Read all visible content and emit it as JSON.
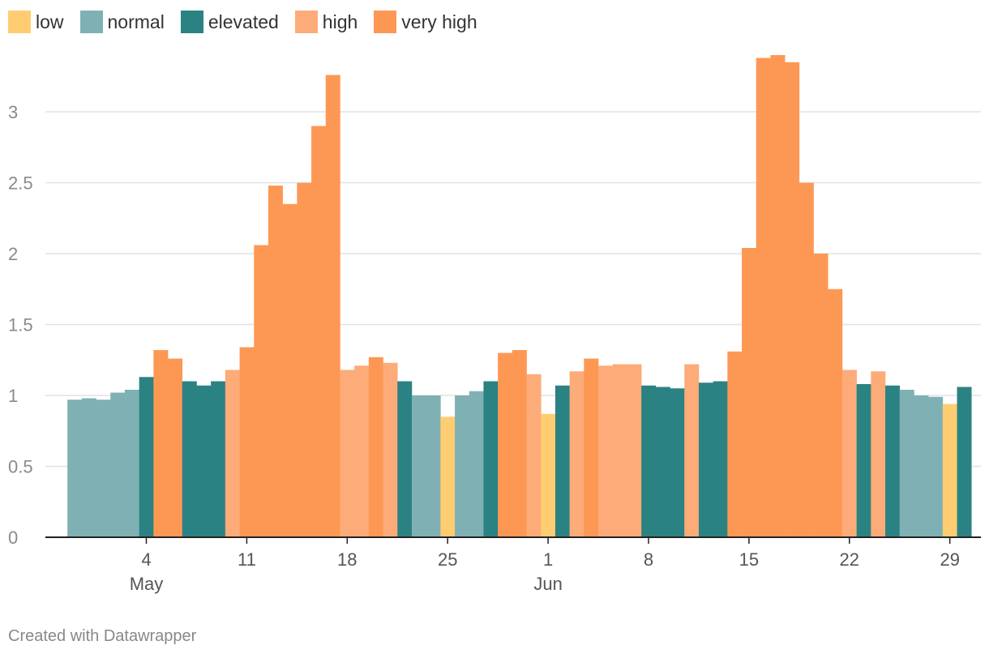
{
  "chart_data": {
    "type": "bar",
    "legend": [
      {
        "key": "low",
        "label": "low",
        "color": "#ffcd71"
      },
      {
        "key": "normal",
        "label": "normal",
        "color": "#7fb1b4"
      },
      {
        "key": "elevated",
        "label": "elevated",
        "color": "#2b8283"
      },
      {
        "key": "high",
        "label": "high",
        "color": "#fdab78"
      },
      {
        "key": "very_high",
        "label": "very high",
        "color": "#fd9854"
      }
    ],
    "ylim": [
      0,
      3.4
    ],
    "yticks": [
      {
        "value": 0,
        "label": "0"
      },
      {
        "value": 0.5,
        "label": "0.5"
      },
      {
        "value": 1,
        "label": "1"
      },
      {
        "value": 1.5,
        "label": "1.5"
      },
      {
        "value": 2,
        "label": "2"
      },
      {
        "value": 2.5,
        "label": "2.5"
      },
      {
        "value": 3,
        "label": "3"
      }
    ],
    "x_start": "2020-04-28",
    "x_end": "2020-06-30",
    "xticks": [
      {
        "date": "2020-05-04",
        "label": "4",
        "sublabel": "May"
      },
      {
        "date": "2020-05-11",
        "label": "11",
        "sublabel": ""
      },
      {
        "date": "2020-05-18",
        "label": "18",
        "sublabel": ""
      },
      {
        "date": "2020-05-25",
        "label": "25",
        "sublabel": ""
      },
      {
        "date": "2020-06-01",
        "label": "1",
        "sublabel": "Jun"
      },
      {
        "date": "2020-06-08",
        "label": "8",
        "sublabel": ""
      },
      {
        "date": "2020-06-15",
        "label": "15",
        "sublabel": ""
      },
      {
        "date": "2020-06-22",
        "label": "22",
        "sublabel": ""
      },
      {
        "date": "2020-06-29",
        "label": "29",
        "sublabel": ""
      }
    ],
    "bars": [
      {
        "date": "2020-04-29",
        "value": 0.97,
        "category": "normal"
      },
      {
        "date": "2020-04-30",
        "value": 0.98,
        "category": "normal"
      },
      {
        "date": "2020-05-01",
        "value": 0.97,
        "category": "normal"
      },
      {
        "date": "2020-05-02",
        "value": 1.02,
        "category": "normal"
      },
      {
        "date": "2020-05-03",
        "value": 1.04,
        "category": "normal"
      },
      {
        "date": "2020-05-04",
        "value": 1.13,
        "category": "elevated"
      },
      {
        "date": "2020-05-05",
        "value": 1.32,
        "category": "very_high"
      },
      {
        "date": "2020-05-06",
        "value": 1.26,
        "category": "very_high"
      },
      {
        "date": "2020-05-07",
        "value": 1.1,
        "category": "elevated"
      },
      {
        "date": "2020-05-08",
        "value": 1.07,
        "category": "elevated"
      },
      {
        "date": "2020-05-09",
        "value": 1.1,
        "category": "elevated"
      },
      {
        "date": "2020-05-10",
        "value": 1.18,
        "category": "high"
      },
      {
        "date": "2020-05-11",
        "value": 1.34,
        "category": "very_high"
      },
      {
        "date": "2020-05-12",
        "value": 2.06,
        "category": "very_high"
      },
      {
        "date": "2020-05-13",
        "value": 2.48,
        "category": "very_high"
      },
      {
        "date": "2020-05-14",
        "value": 2.35,
        "category": "very_high"
      },
      {
        "date": "2020-05-15",
        "value": 2.5,
        "category": "very_high"
      },
      {
        "date": "2020-05-16",
        "value": 2.9,
        "category": "very_high"
      },
      {
        "date": "2020-05-17",
        "value": 3.26,
        "category": "very_high"
      },
      {
        "date": "2020-05-18",
        "value": 1.18,
        "category": "high"
      },
      {
        "date": "2020-05-19",
        "value": 1.21,
        "category": "high"
      },
      {
        "date": "2020-05-20",
        "value": 1.27,
        "category": "very_high"
      },
      {
        "date": "2020-05-21",
        "value": 1.23,
        "category": "high"
      },
      {
        "date": "2020-05-22",
        "value": 1.1,
        "category": "elevated"
      },
      {
        "date": "2020-05-23",
        "value": 1.0,
        "category": "normal"
      },
      {
        "date": "2020-05-24",
        "value": 1.0,
        "category": "normal"
      },
      {
        "date": "2020-05-25",
        "value": 0.85,
        "category": "low"
      },
      {
        "date": "2020-05-26",
        "value": 1.0,
        "category": "normal"
      },
      {
        "date": "2020-05-27",
        "value": 1.03,
        "category": "normal"
      },
      {
        "date": "2020-05-28",
        "value": 1.1,
        "category": "elevated"
      },
      {
        "date": "2020-05-29",
        "value": 1.3,
        "category": "very_high"
      },
      {
        "date": "2020-05-30",
        "value": 1.32,
        "category": "very_high"
      },
      {
        "date": "2020-05-31",
        "value": 1.15,
        "category": "high"
      },
      {
        "date": "2020-06-01",
        "value": 0.87,
        "category": "low"
      },
      {
        "date": "2020-06-02",
        "value": 1.07,
        "category": "elevated"
      },
      {
        "date": "2020-06-03",
        "value": 1.17,
        "category": "high"
      },
      {
        "date": "2020-06-04",
        "value": 1.26,
        "category": "very_high"
      },
      {
        "date": "2020-06-05",
        "value": 1.21,
        "category": "high"
      },
      {
        "date": "2020-06-06",
        "value": 1.22,
        "category": "high"
      },
      {
        "date": "2020-06-07",
        "value": 1.22,
        "category": "high"
      },
      {
        "date": "2020-06-08",
        "value": 1.07,
        "category": "elevated"
      },
      {
        "date": "2020-06-09",
        "value": 1.06,
        "category": "elevated"
      },
      {
        "date": "2020-06-10",
        "value": 1.05,
        "category": "elevated"
      },
      {
        "date": "2020-06-11",
        "value": 1.22,
        "category": "high"
      },
      {
        "date": "2020-06-12",
        "value": 1.09,
        "category": "elevated"
      },
      {
        "date": "2020-06-13",
        "value": 1.1,
        "category": "elevated"
      },
      {
        "date": "2020-06-14",
        "value": 1.31,
        "category": "very_high"
      },
      {
        "date": "2020-06-15",
        "value": 2.04,
        "category": "very_high"
      },
      {
        "date": "2020-06-16",
        "value": 3.38,
        "category": "very_high"
      },
      {
        "date": "2020-06-17",
        "value": 3.4,
        "category": "very_high"
      },
      {
        "date": "2020-06-18",
        "value": 3.35,
        "category": "very_high"
      },
      {
        "date": "2020-06-19",
        "value": 2.5,
        "category": "very_high"
      },
      {
        "date": "2020-06-20",
        "value": 2.0,
        "category": "very_high"
      },
      {
        "date": "2020-06-21",
        "value": 1.75,
        "category": "very_high"
      },
      {
        "date": "2020-06-22",
        "value": 1.18,
        "category": "high"
      },
      {
        "date": "2020-06-23",
        "value": 1.08,
        "category": "elevated"
      },
      {
        "date": "2020-06-24",
        "value": 1.17,
        "category": "high"
      },
      {
        "date": "2020-06-25",
        "value": 1.07,
        "category": "elevated"
      },
      {
        "date": "2020-06-26",
        "value": 1.04,
        "category": "normal"
      },
      {
        "date": "2020-06-27",
        "value": 1.0,
        "category": "normal"
      },
      {
        "date": "2020-06-28",
        "value": 0.99,
        "category": "normal"
      },
      {
        "date": "2020-06-29",
        "value": 0.94,
        "category": "low"
      },
      {
        "date": "2020-06-30",
        "value": 1.06,
        "category": "elevated"
      }
    ],
    "grid": true,
    "legend_position": "top-left"
  },
  "footer": {
    "text": "Created with Datawrapper"
  }
}
